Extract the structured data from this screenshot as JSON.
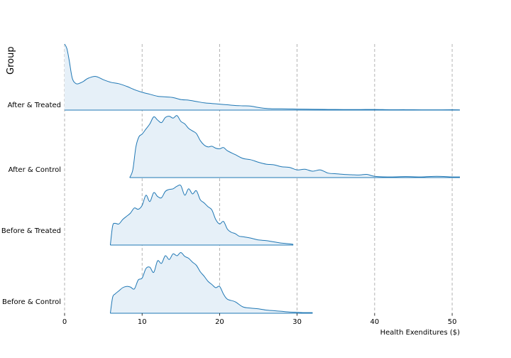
{
  "chart_data": {
    "type": "area",
    "subtype": "ridgeline",
    "title": "",
    "xlabel": "Health Exenditures ($)",
    "ylabel": "Group",
    "xlim": [
      0,
      51
    ],
    "xticks": [
      0,
      10,
      20,
      30,
      40,
      50
    ],
    "grid": {
      "x": true,
      "style": "dashed",
      "color": "#a0a0a0"
    },
    "line_color": "#1f77b4",
    "fill_color": "#e6f0f8",
    "series": [
      {
        "name": "After & Treated",
        "x": [
          0,
          0.3,
          0.6,
          1,
          1.5,
          2,
          2.5,
          3,
          4,
          5,
          6,
          7,
          8,
          9,
          10,
          11,
          12,
          13,
          14,
          15,
          16,
          17,
          18,
          19,
          20,
          21,
          22,
          23,
          24,
          25,
          26,
          27,
          28,
          29,
          30,
          32,
          34,
          36,
          38,
          40,
          42,
          44,
          46,
          48,
          50,
          51
        ],
        "y": [
          1.0,
          0.93,
          0.75,
          0.48,
          0.4,
          0.41,
          0.44,
          0.48,
          0.51,
          0.46,
          0.42,
          0.4,
          0.36,
          0.31,
          0.27,
          0.24,
          0.21,
          0.2,
          0.19,
          0.16,
          0.15,
          0.13,
          0.11,
          0.1,
          0.09,
          0.08,
          0.07,
          0.065,
          0.06,
          0.04,
          0.025,
          0.02,
          0.02,
          0.018,
          0.015,
          0.012,
          0.01,
          0.008,
          0.008,
          0.01,
          0.006,
          0.006,
          0.004,
          0.004,
          0.005,
          0.003
        ]
      },
      {
        "name": "After & Control",
        "x": [
          8.4,
          8.8,
          9.2,
          9.6,
          10,
          10.5,
          11,
          11.5,
          12,
          12.5,
          13,
          13.5,
          14,
          14.5,
          15,
          15.5,
          16,
          16.5,
          17,
          17.5,
          18,
          18.5,
          19,
          19.5,
          20,
          20.5,
          21,
          22,
          23,
          24,
          25,
          26,
          27,
          28,
          29,
          30,
          31,
          32,
          33,
          34,
          35,
          36,
          37,
          38,
          39,
          40,
          42,
          44,
          46,
          48,
          50,
          51
        ],
        "y": [
          0.0,
          0.12,
          0.48,
          0.64,
          0.68,
          0.76,
          0.84,
          0.95,
          0.9,
          0.86,
          0.94,
          0.96,
          0.93,
          0.97,
          0.88,
          0.84,
          0.77,
          0.73,
          0.69,
          0.58,
          0.51,
          0.48,
          0.49,
          0.46,
          0.45,
          0.47,
          0.42,
          0.36,
          0.3,
          0.28,
          0.24,
          0.21,
          0.2,
          0.17,
          0.16,
          0.12,
          0.13,
          0.1,
          0.12,
          0.07,
          0.06,
          0.05,
          0.045,
          0.04,
          0.05,
          0.02,
          0.01,
          0.015,
          0.01,
          0.02,
          0.01,
          0.01
        ]
      },
      {
        "name": "Before & Treated",
        "x": [
          5.9,
          6.2,
          6.5,
          7,
          7.5,
          8,
          8.5,
          9,
          9.5,
          10,
          10.5,
          11,
          11.5,
          12,
          12.5,
          13,
          13.5,
          14,
          14.5,
          15,
          15.5,
          16,
          16.5,
          17,
          17.5,
          18,
          18.5,
          19,
          19.5,
          20,
          20.5,
          21,
          21.5,
          22,
          22.5,
          23,
          24,
          25,
          26,
          27,
          28,
          29,
          29.5
        ],
        "y": [
          0.0,
          0.3,
          0.34,
          0.33,
          0.4,
          0.45,
          0.5,
          0.58,
          0.56,
          0.62,
          0.78,
          0.68,
          0.82,
          0.76,
          0.74,
          0.84,
          0.87,
          0.88,
          0.92,
          0.93,
          0.78,
          0.88,
          0.8,
          0.85,
          0.71,
          0.66,
          0.6,
          0.55,
          0.4,
          0.33,
          0.37,
          0.25,
          0.2,
          0.18,
          0.14,
          0.13,
          0.11,
          0.08,
          0.07,
          0.05,
          0.03,
          0.02,
          0.01
        ]
      },
      {
        "name": "Before & Control",
        "x": [
          5.9,
          6.2,
          6.5,
          7,
          7.5,
          8,
          8.5,
          9,
          9.5,
          10,
          10.5,
          11,
          11.5,
          12,
          12.5,
          13,
          13.5,
          14,
          14.5,
          15,
          15.5,
          16,
          16.5,
          17,
          17.5,
          18,
          18.5,
          19,
          19.5,
          20,
          20.5,
          21,
          22,
          23,
          24,
          25,
          26,
          27,
          28,
          29,
          30,
          31,
          32
        ],
        "y": [
          0.0,
          0.25,
          0.3,
          0.35,
          0.4,
          0.42,
          0.41,
          0.38,
          0.52,
          0.55,
          0.7,
          0.72,
          0.64,
          0.82,
          0.78,
          0.9,
          0.84,
          0.93,
          0.9,
          0.95,
          0.89,
          0.86,
          0.8,
          0.75,
          0.65,
          0.58,
          0.5,
          0.45,
          0.4,
          0.42,
          0.3,
          0.22,
          0.18,
          0.1,
          0.08,
          0.07,
          0.05,
          0.04,
          0.03,
          0.02,
          0.015,
          0.01,
          0.01
        ]
      }
    ]
  }
}
